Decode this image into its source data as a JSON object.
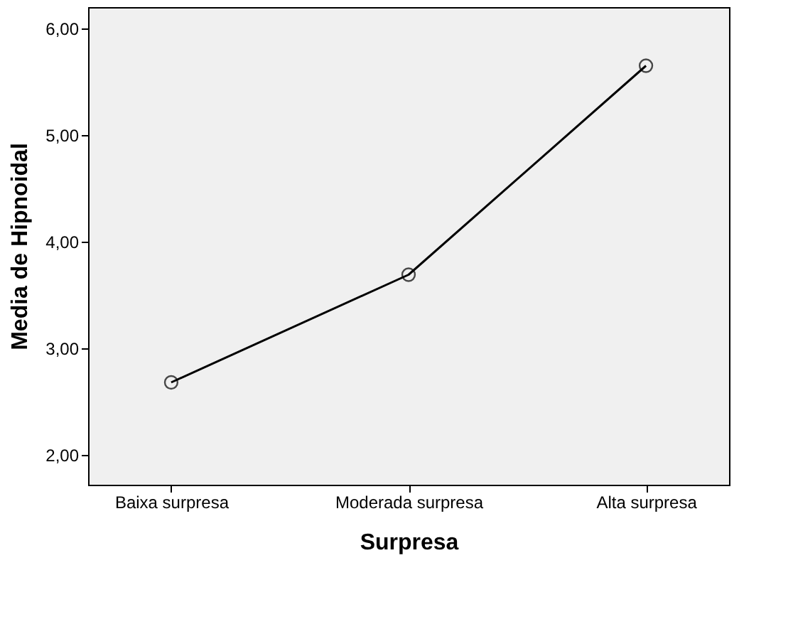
{
  "chart_data": {
    "type": "line",
    "xlabel": "Surpresa",
    "ylabel": "Media de Hipnoidal",
    "categories": [
      "Baixa surpresa",
      "Moderada surpresa",
      "Alta surpresa"
    ],
    "series": [
      {
        "color": "#000000",
        "values": [
          2.68,
          3.69,
          5.65
        ]
      }
    ],
    "ylim": [
      1.72,
      6.2
    ],
    "yticks": [
      {
        "value": 2,
        "label": "2,00"
      },
      {
        "value": 3,
        "label": "3,00"
      },
      {
        "value": 4,
        "label": "4,00"
      },
      {
        "value": 5,
        "label": "5,00"
      },
      {
        "value": 6,
        "label": "6,00"
      }
    ],
    "grid": false,
    "marker": "circle",
    "line_style": "solid"
  }
}
